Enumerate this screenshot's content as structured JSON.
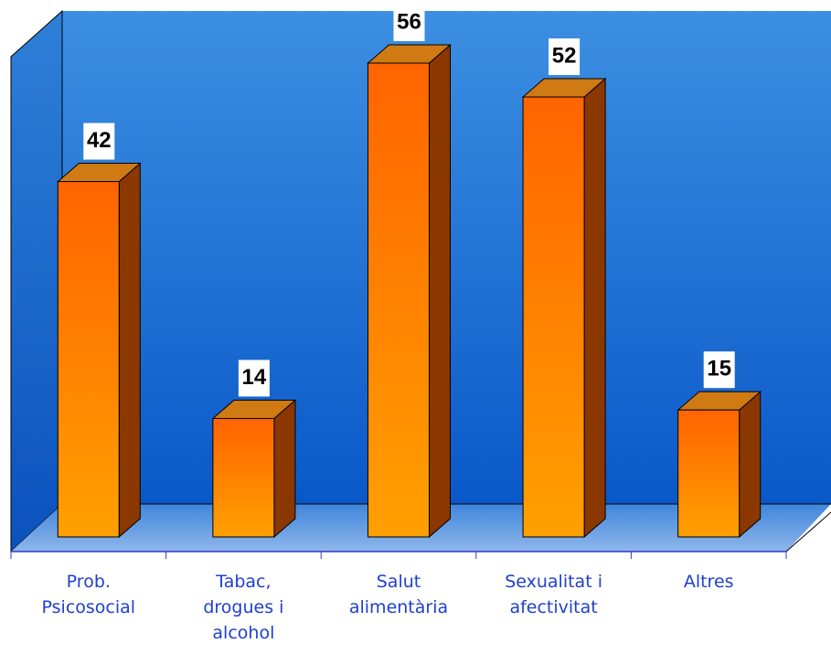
{
  "chart_data": {
    "type": "bar3d",
    "categories": [
      "Prob. Psicosocial",
      "Tabac, drogues i alcohol",
      "Salut alimentària",
      "Sexualitat i afectivitat",
      "Altres"
    ],
    "values": [
      42,
      14,
      56,
      52,
      15
    ],
    "color": "#ff7a00",
    "label_color": "#1f3fd0",
    "ylim": [
      0,
      60
    ]
  }
}
